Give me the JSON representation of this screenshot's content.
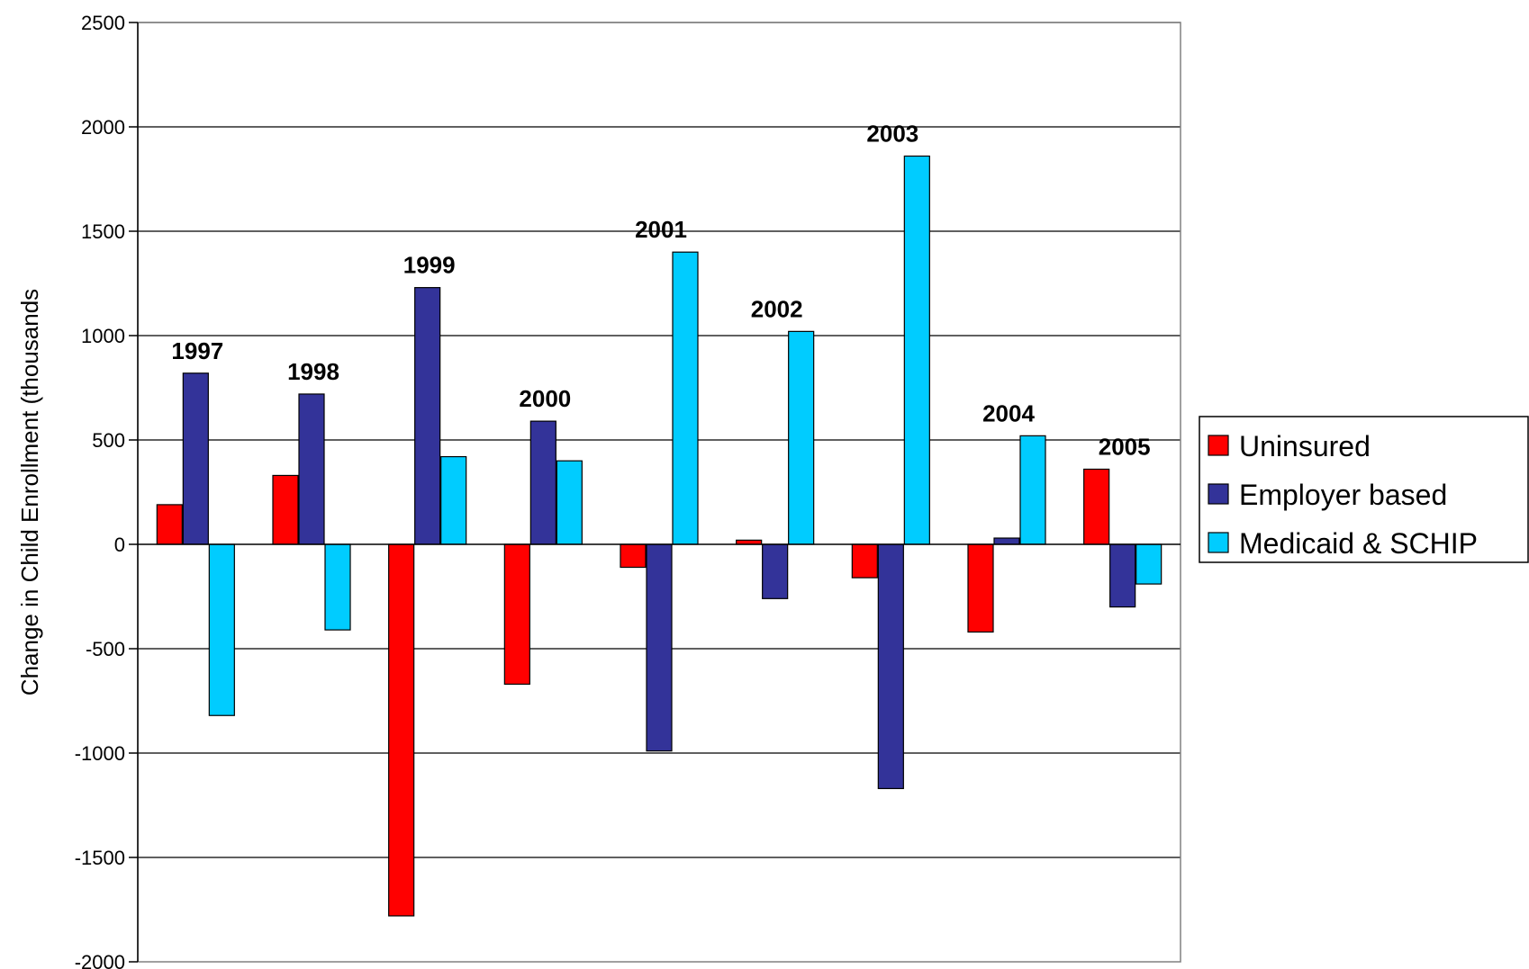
{
  "chart_data": {
    "type": "bar",
    "title": "",
    "xlabel": "",
    "ylabel": "Change in Child Enrollment (thousands",
    "ylim": [
      -2000,
      2500
    ],
    "yticks": [
      2500,
      2000,
      1500,
      1000,
      500,
      0,
      -500,
      -1000,
      -1500,
      -2000
    ],
    "grid": true,
    "legend_position": "right",
    "categories": [
      "1997",
      "1998",
      "1999",
      "2000",
      "2001",
      "2002",
      "2003",
      "2004",
      "2005"
    ],
    "series": [
      {
        "name": "Uninsured",
        "color": "#ff0000",
        "values": [
          190,
          330,
          -1780,
          -670,
          -110,
          20,
          -160,
          -420,
          360
        ]
      },
      {
        "name": "Employer based",
        "color": "#333399",
        "values": [
          820,
          720,
          1230,
          590,
          -990,
          -260,
          -1170,
          30,
          -300
        ]
      },
      {
        "name": "Medicaid & SCHIP",
        "color": "#00ccff",
        "values": [
          -820,
          -410,
          420,
          400,
          1400,
          1020,
          1860,
          520,
          -190
        ]
      }
    ]
  }
}
